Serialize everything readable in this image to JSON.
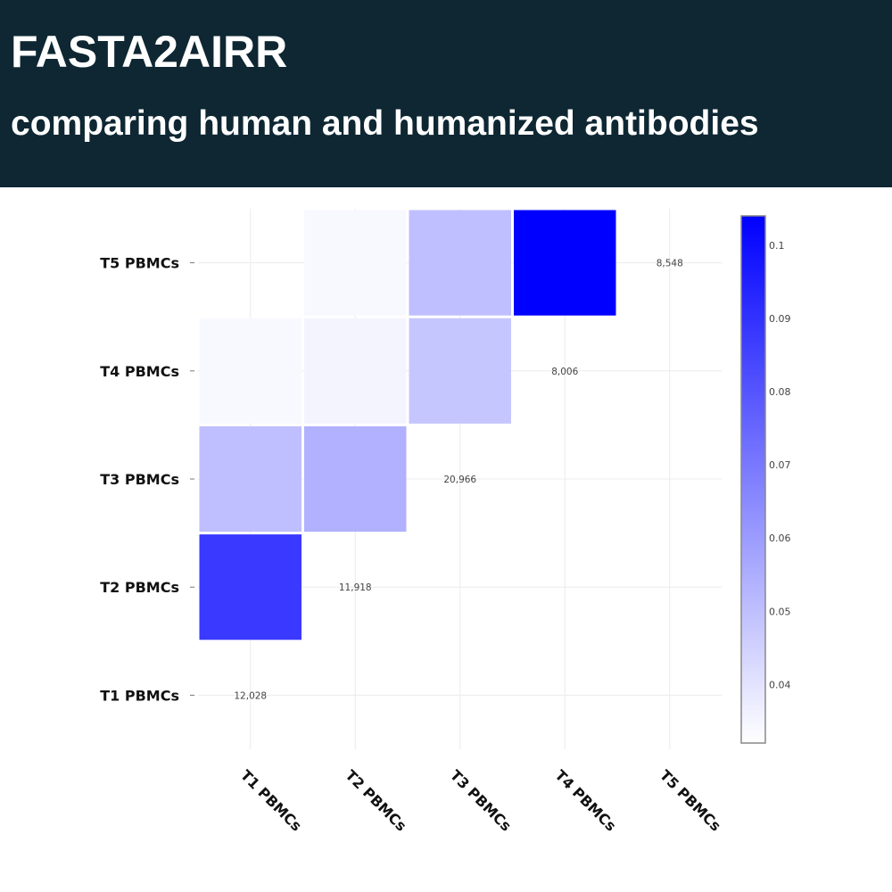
{
  "header": {
    "title": "FASTA2AIRR",
    "subtitle": "comparing human and humanized antibodies"
  },
  "colors": {
    "header_bg": "#0e2733",
    "header_text": "#ffffff",
    "scale_low": "#ffffff",
    "scale_high": "#0000ff"
  },
  "chart_data": {
    "type": "heatmap",
    "categories": [
      "T1 PBMCs",
      "T2 PBMCs",
      "T3 PBMCs",
      "T4 PBMCs",
      "T5 PBMCs"
    ],
    "x_labels": [
      "T1 PBMCs",
      "T2 PBMCs",
      "T3 PBMCs",
      "T4 PBMCs",
      "T5 PBMCs"
    ],
    "y_labels": [
      "T1 PBMCs",
      "T2 PBMCs",
      "T3 PBMCs",
      "T4 PBMCs",
      "T5 PBMCs"
    ],
    "layout": "lower-triangle",
    "cells": [
      {
        "x": "T1 PBMCs",
        "y": "T2 PBMCs",
        "value": 0.088
      },
      {
        "x": "T1 PBMCs",
        "y": "T3 PBMCs",
        "value": 0.05
      },
      {
        "x": "T2 PBMCs",
        "y": "T3 PBMCs",
        "value": 0.054
      },
      {
        "x": "T1 PBMCs",
        "y": "T4 PBMCs",
        "value": 0.034
      },
      {
        "x": "T2 PBMCs",
        "y": "T4 PBMCs",
        "value": 0.035
      },
      {
        "x": "T3 PBMCs",
        "y": "T4 PBMCs",
        "value": 0.048
      },
      {
        "x": "T2 PBMCs",
        "y": "T5 PBMCs",
        "value": 0.034
      },
      {
        "x": "T3 PBMCs",
        "y": "T5 PBMCs",
        "value": 0.05
      },
      {
        "x": "T4 PBMCs",
        "y": "T5 PBMCs",
        "value": 0.104
      }
    ],
    "diagonal_counts": [
      {
        "category": "T1 PBMCs",
        "label": "12,028"
      },
      {
        "category": "T2 PBMCs",
        "label": "11,918"
      },
      {
        "category": "T3 PBMCs",
        "label": "20,966"
      },
      {
        "category": "T4 PBMCs",
        "label": "8,006"
      },
      {
        "category": "T5 PBMCs",
        "label": "8,548"
      }
    ],
    "colorbar": {
      "min": 0.032,
      "max": 0.104,
      "ticks": [
        0.04,
        0.05,
        0.06,
        0.07,
        0.08,
        0.09,
        0.1
      ],
      "tick_labels": [
        "0.04",
        "0.05",
        "0.06",
        "0.07",
        "0.08",
        "0.09",
        "0.1"
      ],
      "placement": "right"
    },
    "grid": true,
    "title": "",
    "xlabel": "",
    "ylabel": ""
  }
}
